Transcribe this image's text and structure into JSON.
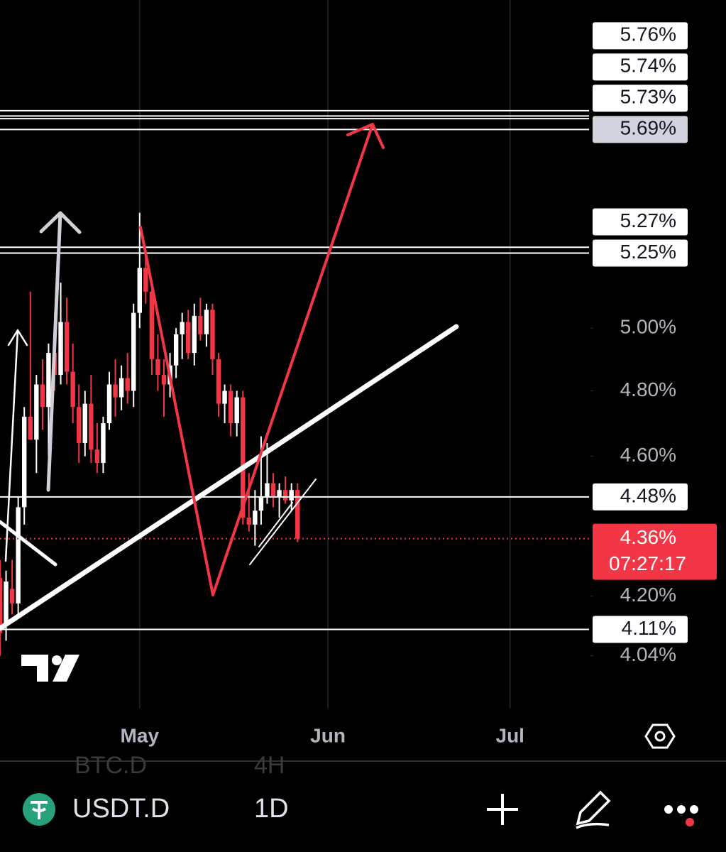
{
  "chart_data": {
    "type": "candlestick",
    "log_scale": true,
    "categories": [
      null,
      null,
      null,
      null,
      null,
      null,
      null,
      null,
      null,
      null,
      null,
      null,
      null,
      null,
      null,
      null,
      null,
      null,
      null,
      null,
      null,
      null,
      null,
      "May",
      null,
      null,
      null,
      null,
      null,
      null,
      null,
      null,
      null,
      null,
      null,
      null,
      null,
      null,
      null,
      null,
      null,
      null,
      null,
      null,
      null,
      null,
      null,
      null,
      null,
      null,
      null,
      null,
      null,
      null,
      "Jun",
      null,
      null,
      null,
      null,
      null,
      null,
      null,
      null,
      null,
      null,
      null,
      null,
      null,
      null,
      null,
      null,
      null,
      null,
      null,
      null,
      null,
      null,
      null,
      null,
      null,
      null,
      null,
      null,
      null,
      "Jul",
      null,
      null,
      null,
      null,
      null,
      null,
      null,
      null,
      null,
      null,
      null,
      null
    ],
    "open": [
      4.25,
      4.12,
      4.22,
      4.18,
      4.45,
      4.72,
      4.65,
      4.82,
      4.75,
      4.92,
      4.85,
      5.02,
      4.86,
      4.75,
      4.64,
      4.76,
      4.62,
      4.58,
      4.7,
      4.82,
      4.78,
      4.84,
      4.8,
      5.05,
      5.2,
      5.12,
      4.9,
      4.85,
      4.82,
      4.88,
      4.98,
      5.02,
      4.92,
      5.04,
      4.98,
      5.06,
      4.9,
      4.76,
      4.8,
      4.7,
      4.78,
      4.42,
      4.4,
      4.44,
      4.48,
      4.52,
      4.48,
      4.5,
      4.47,
      4.5,
      null,
      null,
      null,
      null,
      null,
      null,
      null,
      null,
      null,
      null,
      null,
      null,
      null,
      null,
      null,
      null,
      null,
      null,
      null,
      null,
      null,
      null,
      null,
      null,
      null,
      null,
      null,
      null,
      null,
      null,
      null,
      null,
      null,
      null,
      null,
      null,
      null,
      null,
      null,
      null,
      null,
      null,
      null,
      null,
      null,
      null,
      null
    ],
    "high": [
      4.3,
      4.27,
      4.3,
      4.48,
      4.75,
      5.12,
      4.85,
      4.9,
      4.95,
      5.05,
      5.15,
      5.1,
      4.95,
      4.82,
      4.8,
      4.85,
      4.7,
      4.72,
      4.86,
      4.9,
      4.88,
      4.92,
      5.08,
      5.39,
      5.25,
      5.15,
      4.98,
      4.9,
      4.92,
      5.0,
      5.05,
      5.06,
      5.08,
      5.1,
      5.08,
      5.08,
      4.92,
      4.82,
      4.82,
      4.8,
      4.8,
      4.55,
      4.5,
      4.66,
      4.64,
      4.55,
      4.52,
      4.54,
      4.52,
      4.52,
      null,
      null,
      null,
      null,
      null,
      null,
      null,
      null,
      null,
      null,
      null,
      null,
      null,
      null,
      null,
      null,
      null,
      null,
      null,
      null,
      null,
      null,
      null,
      null,
      null,
      null,
      null,
      null,
      null,
      null,
      null,
      null,
      null,
      null,
      null,
      null,
      null,
      null,
      null,
      null,
      null,
      null,
      null,
      null,
      null,
      null,
      null
    ],
    "low": [
      4.04,
      4.08,
      4.15,
      4.15,
      4.4,
      4.65,
      4.55,
      4.68,
      4.6,
      4.8,
      4.82,
      4.82,
      4.7,
      4.58,
      4.6,
      4.58,
      4.55,
      4.55,
      4.68,
      4.72,
      4.74,
      4.76,
      4.75,
      5.0,
      5.08,
      4.85,
      4.8,
      4.72,
      4.78,
      4.84,
      4.9,
      4.9,
      4.88,
      4.96,
      4.94,
      4.85,
      4.72,
      4.7,
      4.66,
      4.66,
      4.4,
      4.38,
      4.34,
      4.4,
      4.46,
      4.45,
      4.42,
      4.46,
      4.44,
      4.35,
      null,
      null,
      null,
      null,
      null,
      null,
      null,
      null,
      null,
      null,
      null,
      null,
      null,
      null,
      null,
      null,
      null,
      null,
      null,
      null,
      null,
      null,
      null,
      null,
      null,
      null,
      null,
      null,
      null,
      null,
      null,
      null,
      null,
      null,
      null,
      null,
      null,
      null,
      null,
      null,
      null,
      null,
      null,
      null,
      null,
      null,
      null
    ],
    "close": [
      4.1,
      4.24,
      4.18,
      4.45,
      4.72,
      4.65,
      4.82,
      4.75,
      4.92,
      4.85,
      5.02,
      4.86,
      4.75,
      4.64,
      4.76,
      4.62,
      4.58,
      4.7,
      4.82,
      4.78,
      4.84,
      4.8,
      5.05,
      5.2,
      5.12,
      4.9,
      4.85,
      4.82,
      4.88,
      4.98,
      5.02,
      4.92,
      5.04,
      4.98,
      5.06,
      4.9,
      4.76,
      4.8,
      4.7,
      4.78,
      4.42,
      4.4,
      4.44,
      4.48,
      4.52,
      4.48,
      4.5,
      4.47,
      4.5,
      4.36,
      null,
      null,
      null,
      null,
      null,
      null,
      null,
      null,
      null,
      null,
      null,
      null,
      null,
      null,
      null,
      null,
      null,
      null,
      null,
      null,
      null,
      null,
      null,
      null,
      null,
      null,
      null,
      null,
      null,
      null,
      null,
      null,
      null,
      null,
      null,
      null,
      null,
      null,
      null,
      null,
      null,
      null,
      null,
      null,
      null,
      null,
      null
    ],
    "up_color": "#ffffff",
    "down_color": "#f23645",
    "ylim": [
      3.9,
      6.19
    ],
    "yticks": [
      {
        "value": 5.0,
        "label": "5.00%"
      },
      {
        "value": 4.8,
        "label": "4.80%"
      },
      {
        "value": 4.6,
        "label": "4.60%"
      },
      {
        "value": 4.2,
        "label": "4.20%"
      },
      {
        "value": 4.04,
        "label": "4.04%"
      }
    ],
    "price_lines": [
      {
        "value": 5.76,
        "label": "5.76%"
      },
      {
        "value": 5.74,
        "label": "5.74%"
      },
      {
        "value": 5.73,
        "label": "5.73%"
      },
      {
        "value": 5.69,
        "label": "5.69%",
        "label_color": "#d1d4dc"
      },
      {
        "value": 5.27,
        "label": "5.27%"
      },
      {
        "value": 5.25,
        "label": "5.25%"
      },
      {
        "value": 4.48,
        "label": "4.48%"
      },
      {
        "value": 4.11,
        "label": "4.11%"
      }
    ],
    "last_price": {
      "value": 4.36,
      "label": "4.36%"
    },
    "countdown": "07:27:17"
  },
  "toolbar": {
    "symbol": "USDT.D",
    "interval": "1D",
    "behind_symbol": "BTC.D",
    "behind_interval": "4H"
  }
}
